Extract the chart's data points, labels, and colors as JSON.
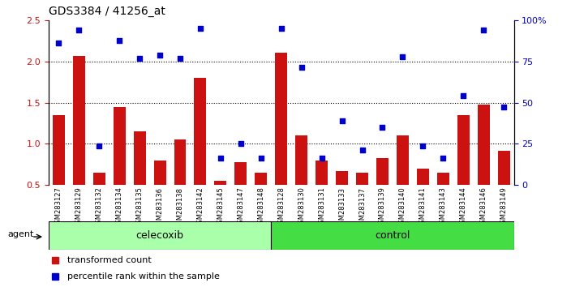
{
  "title": "GDS3384 / 41256_at",
  "samples": [
    "GSM283127",
    "GSM283129",
    "GSM283132",
    "GSM283134",
    "GSM283135",
    "GSM283136",
    "GSM283138",
    "GSM283142",
    "GSM283145",
    "GSM283147",
    "GSM283148",
    "GSM283128",
    "GSM283130",
    "GSM283131",
    "GSM283133",
    "GSM283137",
    "GSM283139",
    "GSM283140",
    "GSM283141",
    "GSM283143",
    "GSM283144",
    "GSM283146",
    "GSM283149"
  ],
  "bar_values": [
    1.35,
    2.07,
    0.65,
    1.45,
    1.15,
    0.8,
    1.05,
    1.8,
    0.55,
    0.78,
    0.65,
    2.1,
    1.1,
    0.8,
    0.67,
    0.65,
    0.83,
    1.1,
    0.7,
    0.65,
    1.35,
    1.48,
    0.92
  ],
  "scatter_values": [
    2.22,
    2.38,
    0.97,
    2.25,
    2.04,
    2.08,
    2.04,
    2.4,
    0.83,
    1.0,
    0.83,
    2.4,
    1.93,
    0.83,
    1.28,
    0.93,
    1.2,
    2.06,
    0.97,
    0.83,
    1.58,
    2.38,
    1.45
  ],
  "group_labels": [
    "celecoxib",
    "control"
  ],
  "celecoxib_n": 11,
  "control_n": 12,
  "celecoxib_color": "#aaffaa",
  "control_color": "#44dd44",
  "bar_color": "#cc1111",
  "scatter_color": "#0000cc",
  "ylim_left": [
    0.5,
    2.5
  ],
  "ylim_right": [
    0,
    100
  ],
  "yticks_left": [
    0.5,
    1.0,
    1.5,
    2.0,
    2.5
  ],
  "yticks_right": [
    0,
    25,
    50,
    75,
    100
  ],
  "ytick_labels_right": [
    "0",
    "25",
    "50",
    "75",
    "100%"
  ],
  "hlines": [
    1.0,
    1.5,
    2.0
  ],
  "agent_label": "agent",
  "legend_bar_label": "transformed count",
  "legend_scatter_label": "percentile rank within the sample",
  "xtick_bg": "#cccccc",
  "plot_bg": "#ffffff"
}
